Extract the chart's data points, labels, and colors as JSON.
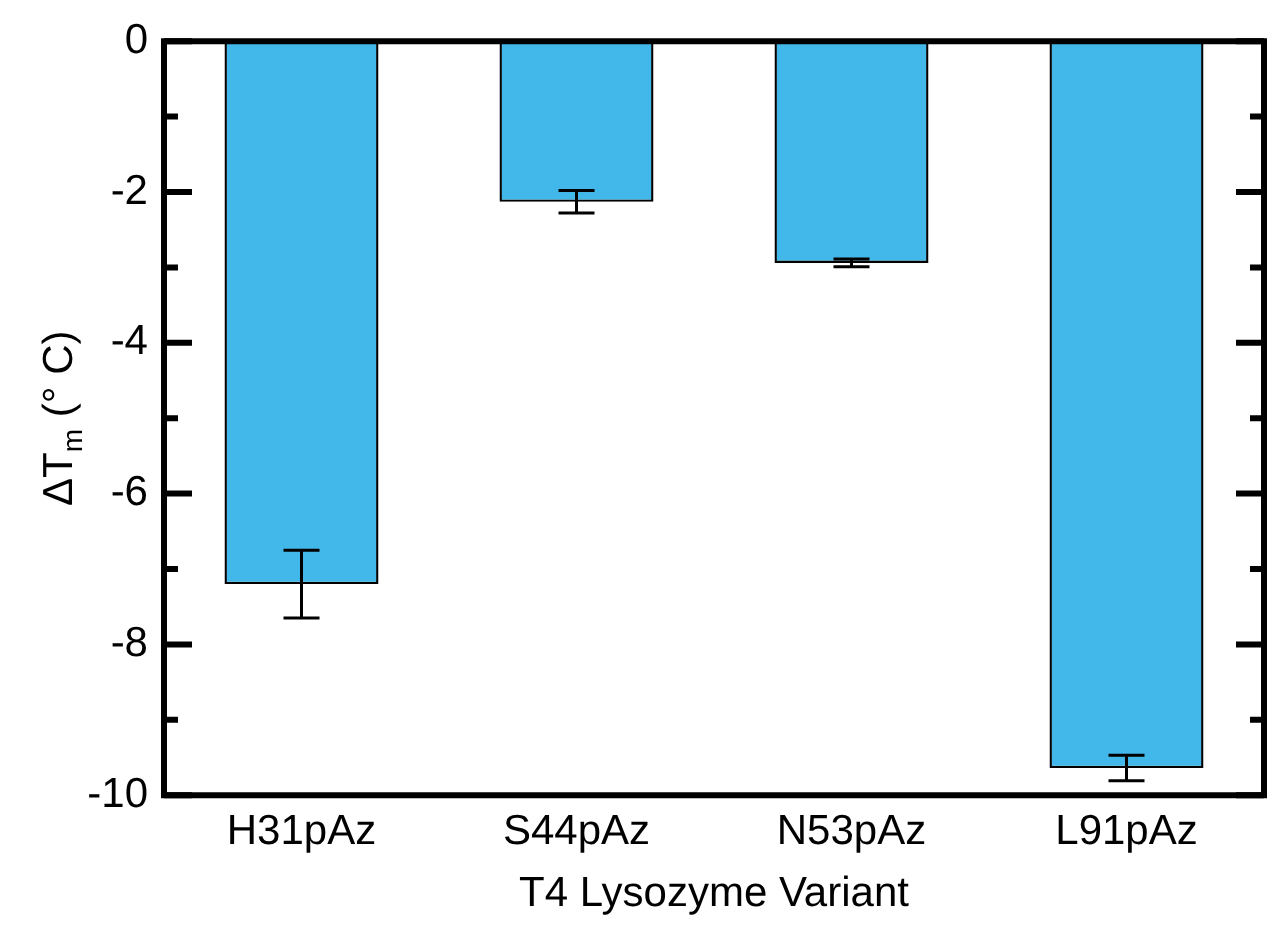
{
  "chart_data": {
    "type": "bar",
    "xlabel": "T4 Lysozyme Variant",
    "ylabel": "ΔT$_{m}$ (° C)",
    "categories": [
      "H31pAz",
      "S44pAz",
      "N53pAz",
      "L91pAz"
    ],
    "values": [
      -7.2,
      -2.13,
      -2.94,
      -9.64
    ],
    "errors": [
      0.45,
      0.15,
      0.05,
      0.17
    ],
    "color": "#42b8ea",
    "ylim": [
      -10,
      0
    ],
    "yticks": [
      -10,
      {
        "value": -9,
        "label": null
      },
      -8,
      {
        "value": -7,
        "label": null
      },
      -6,
      {
        "value": -5,
        "label": null
      },
      -4,
      {
        "value": -3,
        "label": null
      },
      -2,
      {
        "value": -1,
        "label": null
      },
      0
    ],
    "grid": false
  }
}
